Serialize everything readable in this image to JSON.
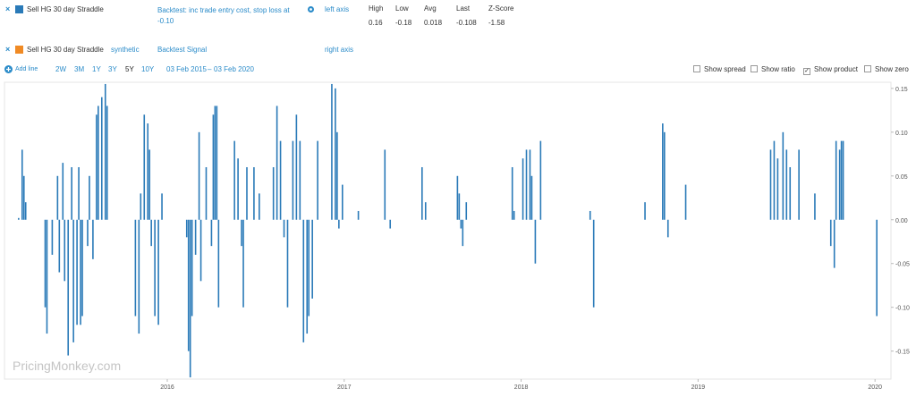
{
  "lines": [
    {
      "name": "Sell HG 30 day Straddle",
      "color": "#2a7ab8",
      "mode": "Backtest: inc trade entry cost, stop loss at -0.10",
      "axis": "left axis"
    },
    {
      "name": "Sell HG 30 day Straddle",
      "color": "#f08a24",
      "variant": "synthetic",
      "mode": "Backtest Signal",
      "axis": "right axis"
    }
  ],
  "stats": {
    "headers": [
      "High",
      "Low",
      "Avg",
      "Last",
      "Z-Score"
    ],
    "values": [
      0.16,
      -0.18,
      0.018,
      -0.108,
      -1.58
    ]
  },
  "toolbar": {
    "add_line": "Add line",
    "periods": [
      {
        "label": "2W",
        "active": false
      },
      {
        "label": "3M",
        "active": false
      },
      {
        "label": "1Y",
        "active": false
      },
      {
        "label": "3Y",
        "active": false
      },
      {
        "label": "5Y",
        "active": true
      },
      {
        "label": "10Y",
        "active": false
      }
    ],
    "date_from": "03 Feb 2015",
    "date_separator": "–",
    "date_to": "03 Feb 2020",
    "options": [
      {
        "label": "Show spread",
        "checked": false
      },
      {
        "label": "Show ratio",
        "checked": false
      },
      {
        "label": "Show product",
        "checked": true
      },
      {
        "label": "Show zero",
        "checked": false
      }
    ]
  },
  "watermark": "PricingMonkey.com",
  "chart_data": {
    "type": "bar",
    "color": "#2a7ab8",
    "x": [
      2015.16,
      2015.18,
      2015.19,
      2015.2,
      2015.31,
      2015.32,
      2015.35,
      2015.38,
      2015.39,
      2015.41,
      2015.42,
      2015.44,
      2015.46,
      2015.47,
      2015.49,
      2015.5,
      2015.51,
      2015.52,
      2015.55,
      2015.56,
      2015.58,
      2015.6,
      2015.61,
      2015.63,
      2015.65,
      2015.66,
      2015.82,
      2015.84,
      2015.85,
      2015.87,
      2015.89,
      2015.9,
      2015.91,
      2015.93,
      2015.95,
      2015.97,
      2016.11,
      2016.12,
      2016.13,
      2016.14,
      2016.16,
      2016.18,
      2016.19,
      2016.22,
      2016.25,
      2016.26,
      2016.27,
      2016.28,
      2016.29,
      2016.38,
      2016.4,
      2016.42,
      2016.43,
      2016.45,
      2016.49,
      2016.52,
      2016.6,
      2016.62,
      2016.64,
      2016.66,
      2016.68,
      2016.71,
      2016.73,
      2016.75,
      2016.77,
      2016.79,
      2016.8,
      2016.82,
      2016.85,
      2016.93,
      2016.95,
      2016.96,
      2016.97,
      2016.99,
      2017.08,
      2017.23,
      2017.26,
      2017.44,
      2017.46,
      2017.64,
      2017.65,
      2017.66,
      2017.67,
      2017.69,
      2017.95,
      2017.96,
      2018.01,
      2018.03,
      2018.05,
      2018.06,
      2018.08,
      2018.11,
      2018.39,
      2018.41,
      2018.7,
      2018.8,
      2018.81,
      2018.83,
      2018.93,
      2019.41,
      2019.43,
      2019.45,
      2019.48,
      2019.5,
      2019.52,
      2019.57,
      2019.66,
      2019.75,
      2019.77,
      2019.78,
      2019.8,
      2019.81,
      2019.82,
      2020.01
    ],
    "values": [
      0.002,
      0.08,
      0.05,
      0.02,
      -0.1,
      -0.13,
      -0.04,
      0.05,
      -0.06,
      0.065,
      -0.07,
      -0.155,
      0.06,
      -0.14,
      -0.12,
      0.06,
      -0.12,
      -0.11,
      -0.03,
      0.05,
      -0.045,
      0.12,
      0.13,
      0.14,
      0.155,
      0.13,
      -0.11,
      -0.13,
      0.03,
      0.12,
      0.11,
      0.08,
      -0.03,
      -0.11,
      -0.12,
      0.03,
      -0.02,
      -0.15,
      -0.18,
      -0.11,
      -0.04,
      0.1,
      -0.07,
      0.06,
      -0.03,
      0.12,
      0.13,
      0.13,
      -0.1,
      0.09,
      0.07,
      -0.03,
      -0.1,
      0.06,
      0.06,
      0.03,
      0.06,
      0.13,
      0.09,
      -0.02,
      -0.1,
      0.09,
      0.12,
      0.09,
      -0.14,
      -0.13,
      -0.11,
      -0.09,
      0.09,
      0.155,
      0.15,
      0.1,
      -0.01,
      0.04,
      0.01,
      0.08,
      -0.01,
      0.06,
      0.02,
      0.05,
      0.03,
      -0.01,
      -0.03,
      0.02,
      0.06,
      0.01,
      0.07,
      0.08,
      0.08,
      0.05,
      -0.05,
      0.09,
      0.01,
      -0.1,
      0.02,
      0.11,
      0.1,
      -0.02,
      0.04,
      0.08,
      0.09,
      0.07,
      0.1,
      0.08,
      0.06,
      0.08,
      0.03,
      -0.03,
      -0.055,
      0.09,
      0.08,
      0.09,
      0.09,
      -0.11
    ],
    "xlim": [
      2015.08,
      2020.09
    ],
    "xticks": [
      2016,
      2017,
      2018,
      2019,
      2020
    ],
    "ylim": [
      -0.182,
      0.157
    ],
    "yticks": [
      -0.15,
      {
        "value": -0.1,
        "label": "-0.10"
      },
      -0.05,
      {
        "value": 0,
        "label": "0.00"
      },
      0.05,
      {
        "value": 0.1,
        "label": "0.10"
      },
      0.15
    ],
    "y_axis_side": "right",
    "grid": false
  }
}
